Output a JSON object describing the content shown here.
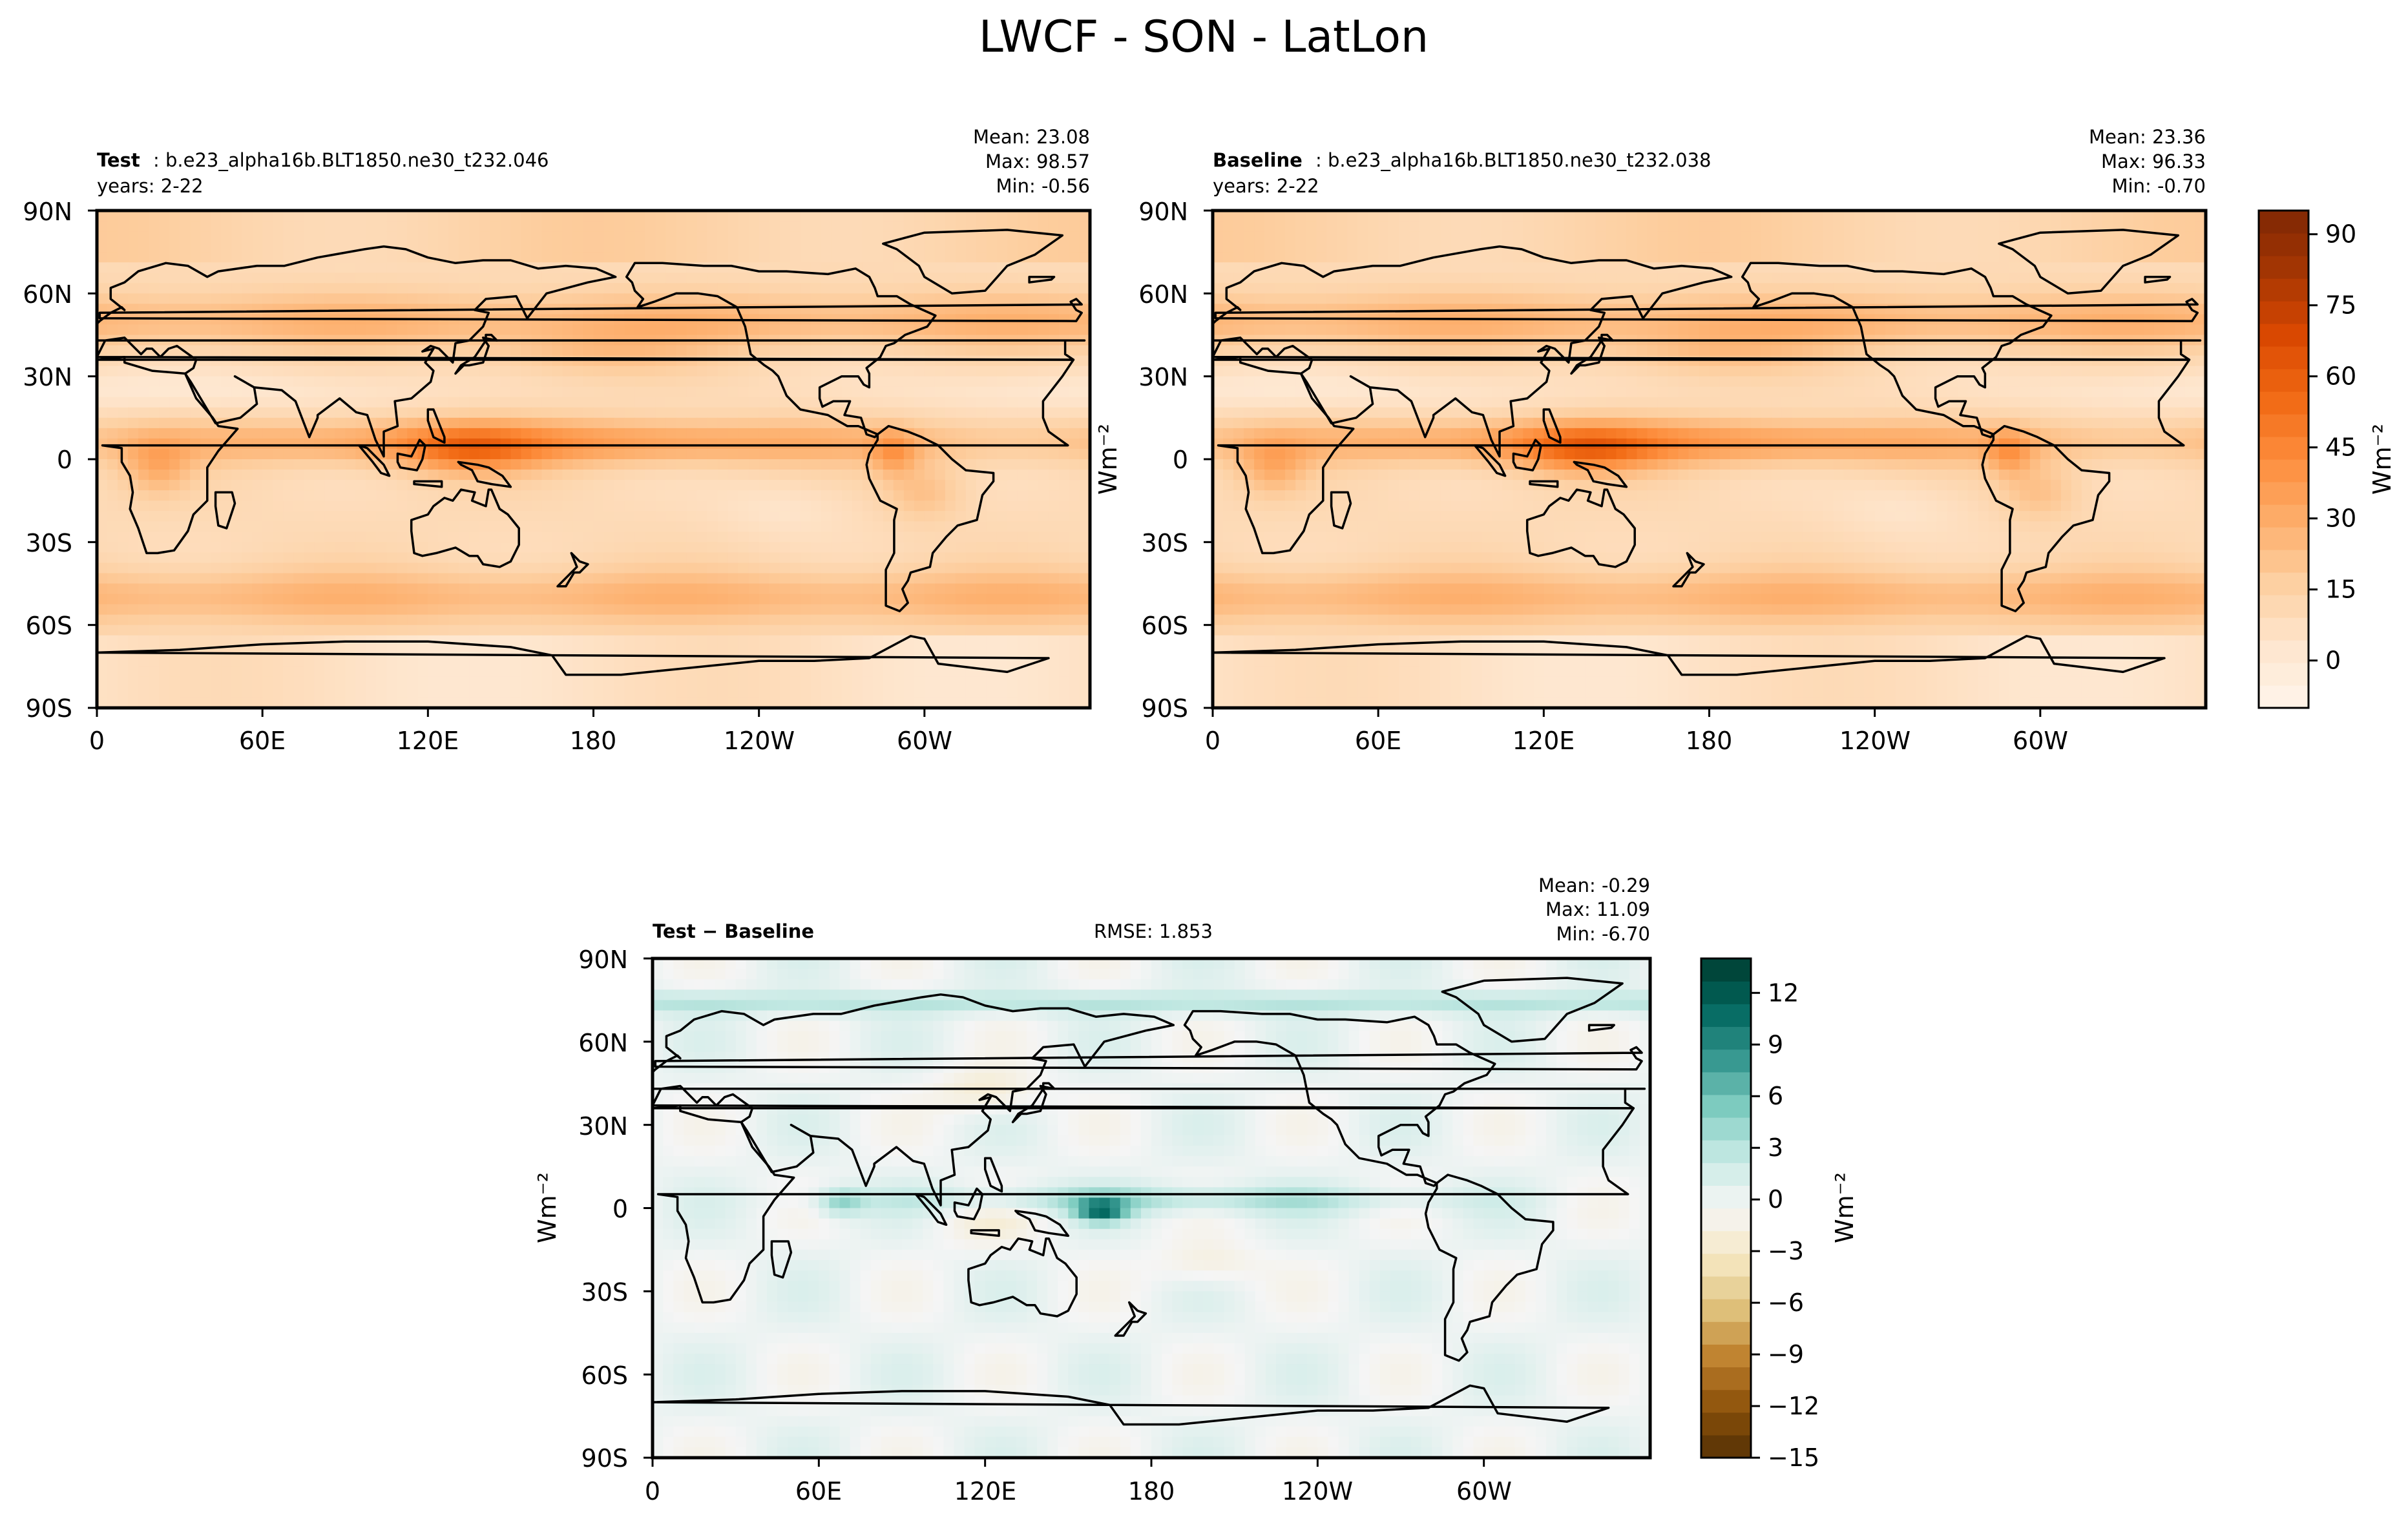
{
  "figure": {
    "title": "LWCF - SON - LatLon"
  },
  "chart_data": [
    {
      "type": "heatmap",
      "id": "test",
      "header_bold": "Test",
      "header_rest": ": b.e23_alpha16b.BLT1850.ne30_t232.046",
      "years": "years: 2-22",
      "stats": {
        "mean": "Mean: 23.08",
        "max": "Max: 98.57",
        "min": "Min: -0.56"
      },
      "rmse": "",
      "y_label": "",
      "x_ticks": [
        "0",
        "60E",
        "120E",
        "180",
        "120W",
        "60W"
      ],
      "y_ticks": [
        "90N",
        "60N",
        "30N",
        "0",
        "30S",
        "60S",
        "90S"
      ],
      "x_range_deg": [
        0,
        360
      ],
      "y_range_deg": [
        -90,
        90
      ],
      "palette": "oranges",
      "value_range": [
        -10,
        95
      ],
      "field_features": {
        "itcz_strength": 1.0,
        "warm_pool_strength": 1.0,
        "storm_track_strength": 1.0
      }
    },
    {
      "type": "heatmap",
      "id": "baseline",
      "header_bold": "Baseline",
      "header_rest": ": b.e23_alpha16b.BLT1850.ne30_t232.038",
      "years": "years: 2-22",
      "stats": {
        "mean": "Mean: 23.36",
        "max": "Max: 96.33",
        "min": "Min: -0.70"
      },
      "rmse": "",
      "y_label": "Wm⁻²",
      "x_ticks": [
        "0",
        "60E",
        "120E",
        "180",
        "120W",
        "60W"
      ],
      "y_ticks": [
        "90N",
        "60N",
        "30N",
        "0",
        "30S",
        "60S",
        "90S"
      ],
      "x_range_deg": [
        0,
        360
      ],
      "y_range_deg": [
        -90,
        90
      ],
      "palette": "oranges",
      "value_range": [
        -10,
        95
      ],
      "field_features": {
        "itcz_strength": 1.04,
        "warm_pool_strength": 1.05,
        "storm_track_strength": 1.02
      }
    },
    {
      "type": "heatmap",
      "id": "diff",
      "header_bold": "Test − Baseline",
      "header_rest": "",
      "years": "",
      "stats": {
        "mean": "Mean: -0.29",
        "max": "Max: 11.09",
        "min": "Min: -6.70"
      },
      "rmse": "RMSE: 1.853",
      "y_label": "Wm⁻²",
      "x_ticks": [
        "0",
        "60E",
        "120E",
        "180",
        "120W",
        "60W"
      ],
      "y_ticks": [
        "90N",
        "60N",
        "30N",
        "0",
        "30S",
        "60S",
        "90S"
      ],
      "x_range_deg": [
        0,
        360
      ],
      "y_range_deg": [
        -90,
        90
      ],
      "palette": "brbg",
      "value_range": [
        -15,
        14
      ]
    },
    {
      "type": "colorbar",
      "id": "cbar_main",
      "label": "Wm⁻²",
      "vmin": -10,
      "vmax": 95,
      "ticks": [
        0,
        15,
        30,
        45,
        60,
        75,
        90
      ],
      "tick_labels": [
        "0",
        "15",
        "30",
        "45",
        "60",
        "75",
        "90"
      ],
      "palette": "oranges"
    },
    {
      "type": "colorbar",
      "id": "cbar_diff",
      "label": "Wm⁻²",
      "vmin": -15,
      "vmax": 14,
      "ticks": [
        -15,
        -12,
        -9,
        -6,
        -3,
        0,
        3,
        6,
        9,
        12
      ],
      "tick_labels": [
        "−15",
        "−12",
        "−9",
        "−6",
        "−3",
        "0",
        "3",
        "6",
        "9",
        "12"
      ],
      "palette": "brbg"
    }
  ]
}
